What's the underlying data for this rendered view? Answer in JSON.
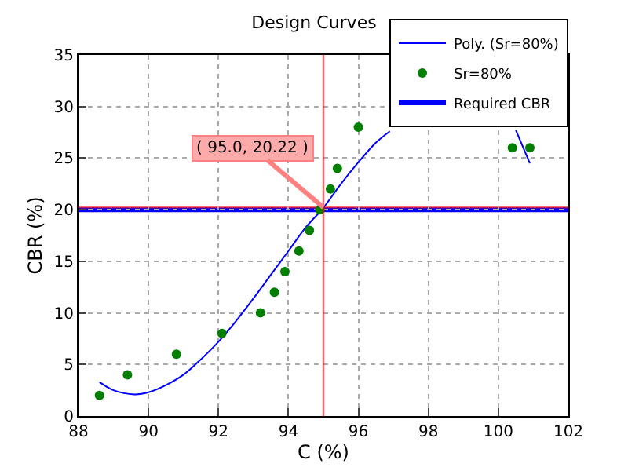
{
  "chart_data": {
    "type": "scatter",
    "title": "Design Curves",
    "xlabel": "C (%)",
    "ylabel": "CBR (%)",
    "xlim": [
      88,
      102
    ],
    "xticks": [
      88,
      90,
      92,
      94,
      96,
      98,
      100,
      102
    ],
    "ylim": [
      0,
      35
    ],
    "yticks": [
      0,
      5,
      10,
      15,
      20,
      25,
      30,
      35
    ],
    "grid": true,
    "legend": "top right",
    "series": [
      {
        "name": "Poly. (Sr=80%)",
        "type": "line",
        "color": "#0000ff",
        "line_style": "solid",
        "x": [
          88.6,
          89.0,
          89.6,
          90.0,
          90.5,
          91.0,
          91.5,
          92.0,
          92.5,
          93.0,
          93.5,
          94.0,
          94.5,
          95.0,
          95.5,
          96.0,
          96.5,
          96.9,
          98.5,
          100.5,
          100.9
        ],
        "values": [
          3.3,
          2.5,
          2.1,
          2.3,
          3.0,
          4.0,
          5.5,
          7.2,
          9.2,
          11.4,
          13.7,
          16.0,
          18.3,
          20.2,
          22.5,
          24.6,
          26.5,
          27.6,
          null,
          27.7,
          24.5
        ]
      },
      {
        "name": "Sr=80%",
        "color": "#007f00",
        "marker": "circle",
        "x": [
          88.6,
          89.4,
          90.8,
          92.1,
          93.2,
          93.6,
          93.9,
          94.3,
          94.6,
          94.9,
          95.2,
          95.4,
          96.0,
          100.4,
          100.9
        ],
        "values": [
          2,
          4,
          6,
          8,
          10,
          12,
          14,
          16,
          18,
          20,
          22,
          24,
          28,
          26,
          26
        ]
      }
    ],
    "ref_lines": [
      {
        "axis": "y",
        "value": 20,
        "label": "Required CBR",
        "color": "#0000ff"
      },
      {
        "axis": "y",
        "value": 20.22,
        "color": "#ff0000"
      },
      {
        "axis": "x",
        "value": 95.0,
        "color": "#ff0000"
      }
    ],
    "annotations": [
      {
        "text": "( 95.0, 20.22 )",
        "x": 95.0,
        "y": 20.22
      }
    ]
  }
}
